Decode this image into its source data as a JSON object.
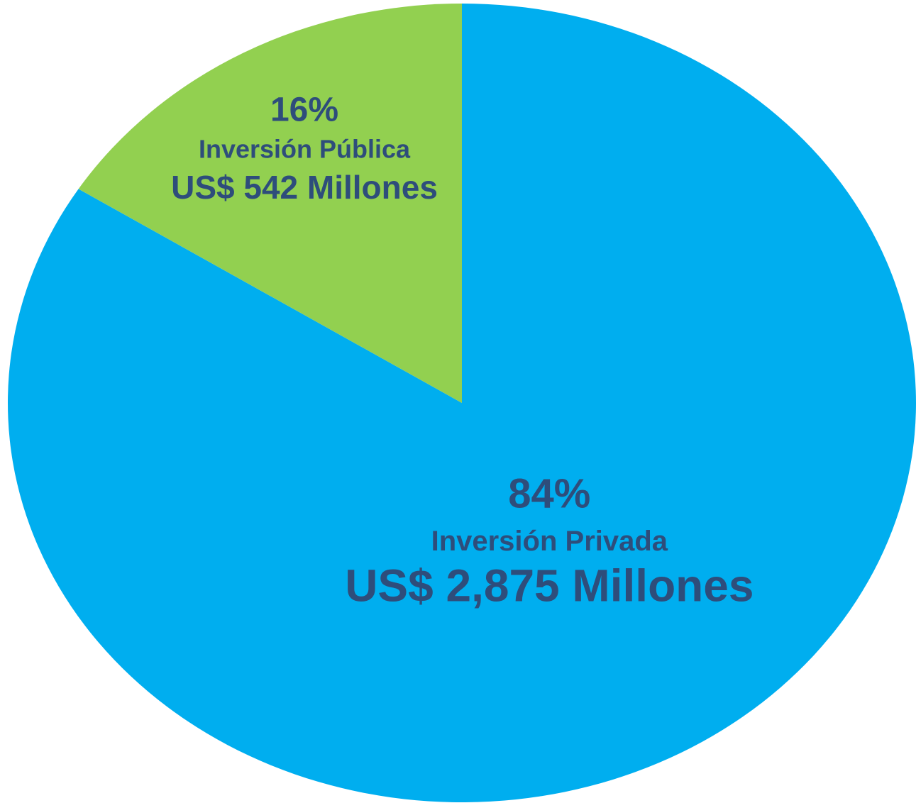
{
  "chart_data": {
    "type": "pie",
    "categories": [
      "Inversión Privada",
      "Inversión Pública"
    ],
    "values": [
      84,
      16
    ],
    "value_labels": [
      "84%",
      "16%"
    ],
    "amount_labels": [
      "US$ 2,875 Millones",
      "US$ 542 Millones"
    ],
    "colors": [
      "#00aeef",
      "#92d050"
    ]
  }
}
